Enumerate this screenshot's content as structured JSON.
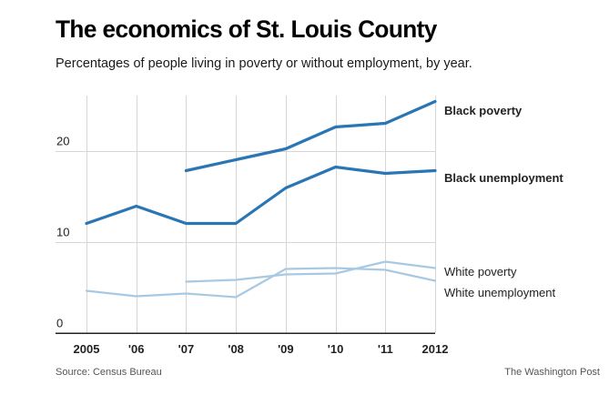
{
  "header": {
    "title": "The economics of St. Louis County",
    "subtitle": "Percentages of people living in poverty or without employment, by year."
  },
  "footer": {
    "source": "Source: Census Bureau",
    "credit": "The Washington Post"
  },
  "chart_data": {
    "type": "line",
    "title": "The economics of St. Louis County",
    "subtitle": "Percentages of people living in poverty or without employment, by year.",
    "xlabel": "",
    "ylabel": "",
    "x": [
      2005,
      2006,
      2007,
      2008,
      2009,
      2010,
      2011,
      2012
    ],
    "x_tick_labels": [
      "2005",
      "'06",
      "'07",
      "'08",
      "'09",
      "'10",
      "'11",
      "2012"
    ],
    "y_ticks": [
      0,
      10,
      20
    ],
    "y_tick_labels": [
      "0",
      "10",
      "20"
    ],
    "ylim": [
      0,
      26
    ],
    "grid": true,
    "legend": "direct labels at right end of lines",
    "series": [
      {
        "name": "Black poverty",
        "color": "#2a75b3",
        "emphasis": "bold",
        "values": [
          null,
          null,
          17.8,
          19.0,
          20.2,
          22.6,
          23.0,
          25.4
        ]
      },
      {
        "name": "Black unemployment",
        "color": "#2a75b3",
        "emphasis": "bold",
        "values": [
          12.0,
          13.9,
          12.0,
          12.0,
          15.9,
          18.2,
          17.5,
          17.8
        ]
      },
      {
        "name": "White poverty",
        "color": "#a8c9e3",
        "emphasis": "normal",
        "values": [
          null,
          null,
          5.6,
          5.8,
          6.4,
          6.5,
          7.8,
          7.1
        ]
      },
      {
        "name": "White unemployment",
        "color": "#a8c9e3",
        "emphasis": "normal",
        "values": [
          4.6,
          4.0,
          4.3,
          3.9,
          7.0,
          7.1,
          6.9,
          5.7
        ]
      }
    ]
  }
}
